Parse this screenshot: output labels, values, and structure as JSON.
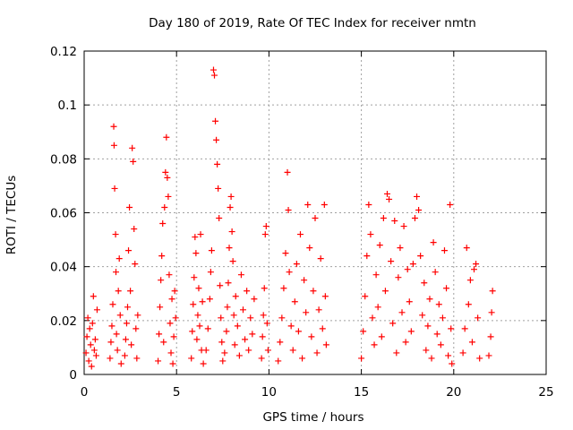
{
  "chart_data": {
    "type": "scatter",
    "title": "Day 180 of 2019, Rate Of TEC Index for receiver nmtn",
    "xlabel": "GPS time / hours",
    "ylabel": "ROTI / TECUs",
    "xlim": [
      0,
      25
    ],
    "ylim": [
      0,
      0.12
    ],
    "xticks": [
      0,
      5,
      10,
      15,
      20,
      25
    ],
    "xtick_labels": [
      "0",
      "5",
      "10",
      "15",
      "20",
      "25"
    ],
    "yticks": [
      0,
      0.02,
      0.04,
      0.06,
      0.08,
      0.1,
      0.12
    ],
    "ytick_labels": [
      "0",
      "0.02",
      "0.04",
      "0.06",
      "0.08",
      "0.1",
      "0.12"
    ],
    "grid": true,
    "marker": "+",
    "color": "#ff0000",
    "series": [
      {
        "name": "ROTI",
        "points": [
          [
            0.1,
            0.008
          ],
          [
            0.15,
            0.014
          ],
          [
            0.2,
            0.021
          ],
          [
            0.25,
            0.005
          ],
          [
            0.3,
            0.017
          ],
          [
            0.35,
            0.011
          ],
          [
            0.4,
            0.003
          ],
          [
            0.45,
            0.019
          ],
          [
            0.5,
            0.029
          ],
          [
            0.55,
            0.009
          ],
          [
            0.6,
            0.013
          ],
          [
            0.65,
            0.007
          ],
          [
            0.7,
            0.024
          ],
          [
            1.4,
            0.006
          ],
          [
            1.45,
            0.012
          ],
          [
            1.5,
            0.018
          ],
          [
            1.55,
            0.026
          ],
          [
            1.6,
            0.092
          ],
          [
            1.62,
            0.085
          ],
          [
            1.65,
            0.069
          ],
          [
            1.7,
            0.052
          ],
          [
            1.72,
            0.038
          ],
          [
            1.75,
            0.015
          ],
          [
            1.8,
            0.009
          ],
          [
            1.85,
            0.031
          ],
          [
            1.9,
            0.043
          ],
          [
            1.95,
            0.022
          ],
          [
            2.0,
            0.004
          ],
          [
            2.2,
            0.007
          ],
          [
            2.25,
            0.013
          ],
          [
            2.3,
            0.019
          ],
          [
            2.35,
            0.025
          ],
          [
            2.4,
            0.046
          ],
          [
            2.45,
            0.062
          ],
          [
            2.5,
            0.031
          ],
          [
            2.55,
            0.011
          ],
          [
            2.6,
            0.084
          ],
          [
            2.65,
            0.079
          ],
          [
            2.7,
            0.054
          ],
          [
            2.75,
            0.041
          ],
          [
            2.8,
            0.017
          ],
          [
            2.85,
            0.006
          ],
          [
            2.9,
            0.022
          ],
          [
            4.0,
            0.005
          ],
          [
            4.05,
            0.015
          ],
          [
            4.1,
            0.025
          ],
          [
            4.15,
            0.035
          ],
          [
            4.2,
            0.044
          ],
          [
            4.25,
            0.056
          ],
          [
            4.3,
            0.012
          ],
          [
            4.35,
            0.062
          ],
          [
            4.4,
            0.075
          ],
          [
            4.45,
            0.088
          ],
          [
            4.5,
            0.073
          ],
          [
            4.55,
            0.066
          ],
          [
            4.6,
            0.037
          ],
          [
            4.65,
            0.019
          ],
          [
            4.7,
            0.008
          ],
          [
            4.75,
            0.028
          ],
          [
            4.8,
            0.004
          ],
          [
            4.85,
            0.014
          ],
          [
            4.9,
            0.031
          ],
          [
            4.95,
            0.021
          ],
          [
            5.8,
            0.006
          ],
          [
            5.85,
            0.016
          ],
          [
            5.9,
            0.026
          ],
          [
            5.95,
            0.036
          ],
          [
            6.0,
            0.051
          ],
          [
            6.05,
            0.045
          ],
          [
            6.1,
            0.013
          ],
          [
            6.15,
            0.022
          ],
          [
            6.2,
            0.032
          ],
          [
            6.25,
            0.018
          ],
          [
            6.3,
            0.052
          ],
          [
            6.35,
            0.009
          ],
          [
            6.4,
            0.027
          ],
          [
            6.45,
            0.004
          ],
          [
            6.6,
            0.009
          ],
          [
            6.7,
            0.017
          ],
          [
            6.8,
            0.028
          ],
          [
            6.85,
            0.038
          ],
          [
            6.9,
            0.046
          ],
          [
            7.0,
            0.113
          ],
          [
            7.05,
            0.111
          ],
          [
            7.1,
            0.094
          ],
          [
            7.15,
            0.087
          ],
          [
            7.2,
            0.078
          ],
          [
            7.25,
            0.069
          ],
          [
            7.3,
            0.058
          ],
          [
            7.35,
            0.033
          ],
          [
            7.4,
            0.021
          ],
          [
            7.45,
            0.012
          ],
          [
            7.5,
            0.005
          ],
          [
            7.6,
            0.008
          ],
          [
            7.7,
            0.016
          ],
          [
            7.75,
            0.025
          ],
          [
            7.8,
            0.034
          ],
          [
            7.85,
            0.047
          ],
          [
            7.9,
            0.062
          ],
          [
            7.95,
            0.066
          ],
          [
            8.0,
            0.053
          ],
          [
            8.05,
            0.042
          ],
          [
            8.1,
            0.022
          ],
          [
            8.15,
            0.011
          ],
          [
            8.2,
            0.029
          ],
          [
            8.3,
            0.018
          ],
          [
            8.4,
            0.007
          ],
          [
            8.5,
            0.037
          ],
          [
            8.6,
            0.024
          ],
          [
            8.7,
            0.013
          ],
          [
            8.8,
            0.031
          ],
          [
            8.9,
            0.009
          ],
          [
            9.0,
            0.021
          ],
          [
            9.1,
            0.015
          ],
          [
            9.2,
            0.028
          ],
          [
            9.6,
            0.006
          ],
          [
            9.65,
            0.014
          ],
          [
            9.7,
            0.022
          ],
          [
            9.75,
            0.032
          ],
          [
            9.8,
            0.052
          ],
          [
            9.85,
            0.055
          ],
          [
            9.9,
            0.019
          ],
          [
            9.95,
            0.009
          ],
          [
            10.5,
            0.005
          ],
          [
            10.6,
            0.012
          ],
          [
            10.7,
            0.021
          ],
          [
            10.8,
            0.032
          ],
          [
            10.9,
            0.045
          ],
          [
            11.0,
            0.075
          ],
          [
            11.05,
            0.061
          ],
          [
            11.1,
            0.038
          ],
          [
            11.2,
            0.018
          ],
          [
            11.3,
            0.009
          ],
          [
            11.4,
            0.027
          ],
          [
            11.5,
            0.041
          ],
          [
            11.6,
            0.016
          ],
          [
            11.7,
            0.052
          ],
          [
            11.8,
            0.006
          ],
          [
            11.9,
            0.035
          ],
          [
            12.0,
            0.023
          ],
          [
            12.1,
            0.063
          ],
          [
            12.2,
            0.047
          ],
          [
            12.3,
            0.014
          ],
          [
            12.4,
            0.031
          ],
          [
            12.5,
            0.058
          ],
          [
            12.6,
            0.008
          ],
          [
            12.7,
            0.024
          ],
          [
            12.8,
            0.043
          ],
          [
            12.9,
            0.017
          ],
          [
            13.0,
            0.063
          ],
          [
            13.05,
            0.029
          ],
          [
            13.1,
            0.011
          ],
          [
            15.0,
            0.006
          ],
          [
            15.1,
            0.016
          ],
          [
            15.2,
            0.029
          ],
          [
            15.3,
            0.044
          ],
          [
            15.4,
            0.063
          ],
          [
            15.5,
            0.052
          ],
          [
            15.6,
            0.021
          ],
          [
            15.7,
            0.011
          ],
          [
            15.8,
            0.037
          ],
          [
            15.9,
            0.025
          ],
          [
            16.0,
            0.048
          ],
          [
            16.1,
            0.014
          ],
          [
            16.2,
            0.058
          ],
          [
            16.3,
            0.031
          ],
          [
            16.4,
            0.067
          ],
          [
            16.5,
            0.065
          ],
          [
            16.6,
            0.042
          ],
          [
            16.7,
            0.019
          ],
          [
            16.8,
            0.057
          ],
          [
            16.9,
            0.008
          ],
          [
            17.0,
            0.036
          ],
          [
            17.1,
            0.047
          ],
          [
            17.2,
            0.023
          ],
          [
            17.3,
            0.055
          ],
          [
            17.4,
            0.012
          ],
          [
            17.5,
            0.039
          ],
          [
            17.6,
            0.027
          ],
          [
            17.7,
            0.016
          ],
          [
            17.8,
            0.041
          ],
          [
            17.9,
            0.058
          ],
          [
            18.0,
            0.066
          ],
          [
            18.1,
            0.061
          ],
          [
            18.2,
            0.044
          ],
          [
            18.3,
            0.022
          ],
          [
            18.4,
            0.034
          ],
          [
            18.5,
            0.009
          ],
          [
            18.6,
            0.018
          ],
          [
            18.7,
            0.028
          ],
          [
            18.8,
            0.006
          ],
          [
            18.9,
            0.049
          ],
          [
            19.0,
            0.038
          ],
          [
            19.1,
            0.015
          ],
          [
            19.2,
            0.026
          ],
          [
            19.3,
            0.011
          ],
          [
            19.4,
            0.021
          ],
          [
            19.5,
            0.046
          ],
          [
            19.6,
            0.032
          ],
          [
            19.7,
            0.007
          ],
          [
            19.8,
            0.063
          ],
          [
            19.85,
            0.017
          ],
          [
            19.9,
            0.004
          ],
          [
            20.5,
            0.008
          ],
          [
            20.6,
            0.017
          ],
          [
            20.7,
            0.047
          ],
          [
            20.8,
            0.026
          ],
          [
            20.9,
            0.035
          ],
          [
            21.0,
            0.012
          ],
          [
            21.1,
            0.039
          ],
          [
            21.2,
            0.041
          ],
          [
            21.3,
            0.021
          ],
          [
            21.4,
            0.006
          ],
          [
            21.9,
            0.007
          ],
          [
            22.0,
            0.014
          ],
          [
            22.05,
            0.023
          ],
          [
            22.1,
            0.031
          ]
        ]
      }
    ]
  }
}
